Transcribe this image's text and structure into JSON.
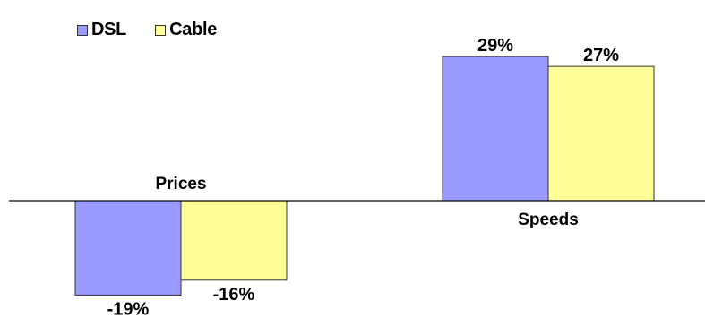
{
  "chart_data": {
    "type": "bar",
    "categories": [
      "Prices",
      "Speeds"
    ],
    "series": [
      {
        "name": "DSL",
        "values": [
          -19,
          29
        ],
        "labels": [
          "-19%",
          "29%"
        ],
        "color": "#9999FF"
      },
      {
        "name": "Cable",
        "values": [
          -16,
          27
        ],
        "labels": [
          "-16%",
          "27%"
        ],
        "color": "#FFFF99"
      }
    ],
    "ylim": [
      -20,
      32
    ],
    "legend_position": "top-left",
    "grid": false,
    "title": "",
    "xlabel": "",
    "ylabel": ""
  }
}
